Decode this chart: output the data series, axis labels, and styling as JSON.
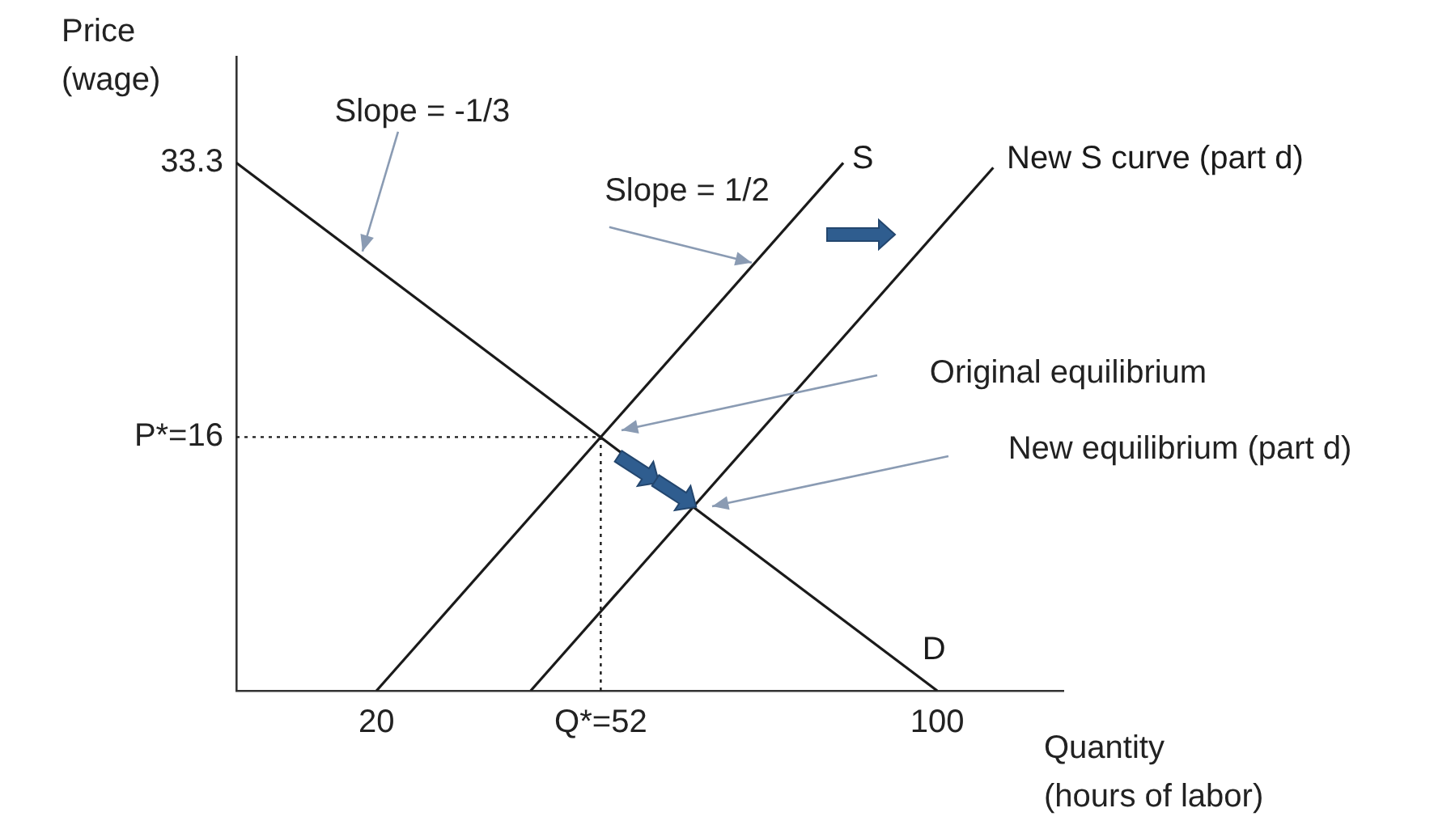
{
  "chart_data": {
    "type": "line",
    "xlabel": "Quantity\n(hours of labor)",
    "ylabel": "Price\n(wage)",
    "xlim": [
      0,
      118
    ],
    "ylim": [
      0,
      40
    ],
    "xticks": [
      20,
      {
        "value": 52,
        "label": "Q*=52"
      },
      100
    ],
    "yticks": [
      {
        "value": 16,
        "label": "P*=16"
      },
      33.3
    ],
    "series": [
      {
        "name": "D",
        "color": "#1a1a1a",
        "x": [
          0,
          100
        ],
        "values": [
          33.3,
          0
        ]
      },
      {
        "name": "S",
        "color": "#1a1a1a",
        "x": [
          20,
          86.6
        ],
        "values": [
          0,
          33.3
        ]
      },
      {
        "name": "New S curve (part d)",
        "color": "#1a1a1a",
        "x": [
          42,
          108
        ],
        "values": [
          0,
          33
        ]
      },
      {
        "color": "#1a1a1a",
        "x": [
          0,
          52
        ],
        "values": [
          16,
          16
        ],
        "line_style": "dotted"
      },
      {
        "color": "#1a1a1a",
        "x": [
          52,
          52
        ],
        "values": [
          0,
          16
        ],
        "line_style": "dotted"
      }
    ],
    "annotations": [
      {
        "text": "Slope = -1/3",
        "x": 18,
        "y": 27.3
      },
      {
        "text": "Slope = 1/2",
        "x": 74,
        "y": 27
      },
      "Original equilibrium",
      "New equilibrium (part d)"
    ],
    "marker": "none",
    "line_style": "solid",
    "grid": false,
    "legend": false
  }
}
